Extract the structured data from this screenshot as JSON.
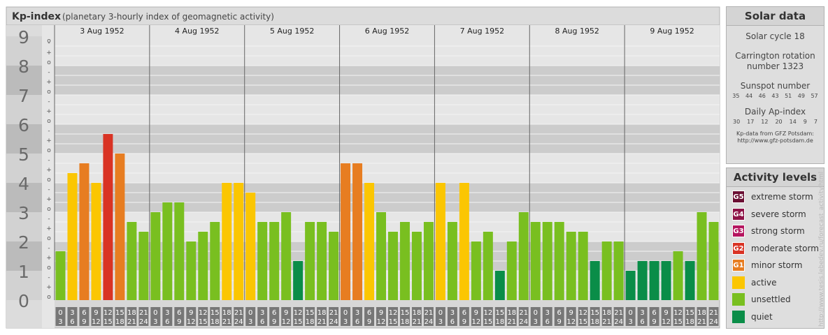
{
  "header": {
    "title": "Kp-index",
    "subtitle": "(planetary 3-hourly index of geomagnetic activity)"
  },
  "chart_data": {
    "type": "bar",
    "title": "Kp-index",
    "subtitle": "(planetary 3-hourly index of geomagnetic activity)",
    "ylim": [
      0,
      9
    ],
    "y_ticks": [
      "0",
      "1",
      "2",
      "3",
      "4",
      "5",
      "6",
      "7",
      "8",
      "9"
    ],
    "sub_ticks": [
      "o",
      "+",
      "-"
    ],
    "interval_top": [
      "0",
      "3",
      "6",
      "9",
      "12",
      "15",
      "18",
      "21"
    ],
    "interval_bottom": [
      "3",
      "6",
      "9",
      "12",
      "15",
      "18",
      "21",
      "24"
    ],
    "days": [
      {
        "date": "3 Aug 1952",
        "kp": [
          1.667,
          4.333,
          4.667,
          4.0,
          5.667,
          5.0,
          2.667,
          2.333
        ]
      },
      {
        "date": "4 Aug 1952",
        "kp": [
          3.0,
          3.333,
          3.333,
          2.0,
          2.333,
          2.667,
          4.0,
          4.0
        ]
      },
      {
        "date": "5 Aug 1952",
        "kp": [
          3.667,
          2.667,
          2.667,
          3.0,
          1.333,
          2.667,
          2.667,
          2.333
        ]
      },
      {
        "date": "6 Aug 1952",
        "kp": [
          4.667,
          4.667,
          4.0,
          3.0,
          2.333,
          2.667,
          2.333,
          2.667
        ]
      },
      {
        "date": "7 Aug 1952",
        "kp": [
          4.0,
          2.667,
          4.0,
          2.0,
          2.333,
          1.0,
          2.0,
          3.0
        ]
      },
      {
        "date": "8 Aug 1952",
        "kp": [
          2.667,
          2.667,
          2.667,
          2.333,
          2.333,
          1.333,
          2.0,
          2.0
        ]
      },
      {
        "date": "9 Aug 1952",
        "kp": [
          1.0,
          1.333,
          1.333,
          1.333,
          1.667,
          1.333,
          3.0,
          2.667
        ]
      }
    ]
  },
  "solar": {
    "title": "Solar data",
    "cycle": "Solar cycle 18",
    "carrington_line1": "Carrington rotation",
    "carrington_line2": "number 1323",
    "sunspot_label": "Sunspot number",
    "sunspot_values": [
      "35",
      "44",
      "46",
      "43",
      "51",
      "49",
      "57"
    ],
    "ap_label": "Daily Ap-index",
    "ap_values": [
      "30",
      "17",
      "12",
      "20",
      "14",
      "9",
      "7"
    ],
    "credit_line1": "Kp-data from GFZ Potsdam:",
    "credit_line2": "http://www.gfz-potsdam.de"
  },
  "activity": {
    "title": "Activity levels",
    "levels": [
      {
        "badge": "G5",
        "label": "extreme storm",
        "color": "#6a0f33"
      },
      {
        "badge": "G4",
        "label": "severe storm",
        "color": "#8e1347"
      },
      {
        "badge": "G3",
        "label": "strong storm",
        "color": "#b5155f"
      },
      {
        "badge": "G2",
        "label": "moderate storm",
        "color": "#d93324"
      },
      {
        "badge": "G1",
        "label": "minor storm",
        "color": "#e77d21"
      },
      {
        "badge": "",
        "label": "active",
        "color": "#fbc602"
      },
      {
        "badge": "",
        "label": "unsettled",
        "color": "#79bf20"
      },
      {
        "badge": "",
        "label": "quiet",
        "color": "#0a8d48"
      }
    ]
  },
  "watermark": "http://www.tesis.lebedev.ru/forecast_activity.html"
}
